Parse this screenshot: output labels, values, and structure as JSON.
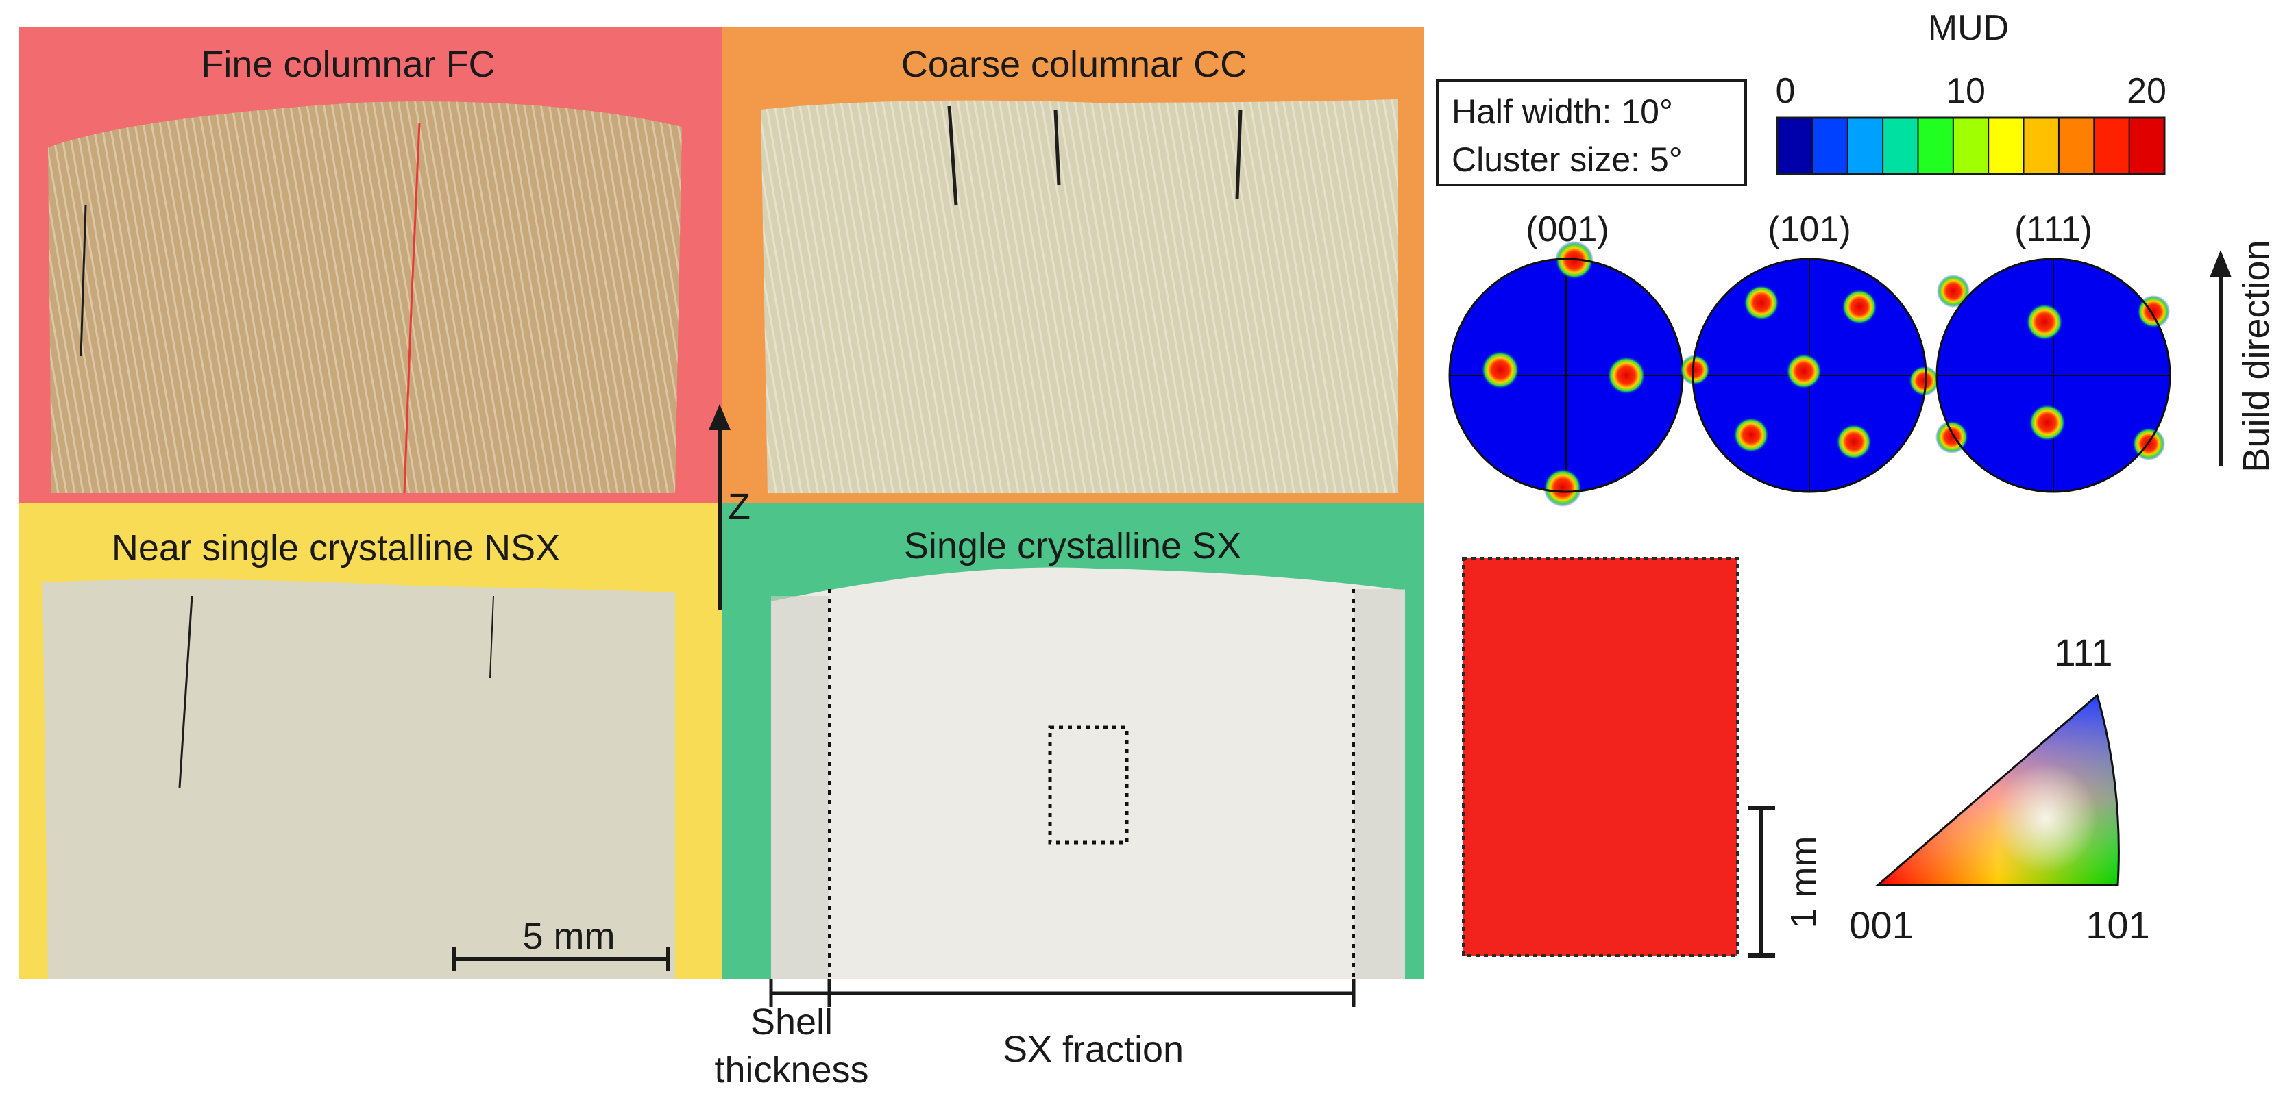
{
  "panels": {
    "fc": {
      "title": "Fine columnar FC",
      "bg": "#f26b6f",
      "sample": "#c7a87a"
    },
    "cc": {
      "title": "Coarse columnar CC",
      "bg": "#f39a4a",
      "sample": "#d8d2b4"
    },
    "nsx": {
      "title": "Near single crystalline NSX",
      "bg": "#f8dc55",
      "sample": "#d9d6c4"
    },
    "sx": {
      "title": "Single crystalline SX",
      "bg": "#4dc58a",
      "sample": "#ecebe6"
    }
  },
  "axis_label": "Z",
  "scale_bar": {
    "label": "5 mm"
  },
  "annotations": {
    "shell_line1": "Shell",
    "shell_line2": "thickness",
    "sx_fraction": "SX fraction"
  },
  "colorbar": {
    "title": "MUD",
    "ticks": [
      "0",
      "10",
      "20"
    ],
    "colors": [
      "#0000aa",
      "#0040ff",
      "#00a0ff",
      "#00e0a0",
      "#20ff20",
      "#a0ff00",
      "#ffff00",
      "#ffc000",
      "#ff8000",
      "#ff2000",
      "#e00000"
    ]
  },
  "info_box": {
    "line1": "Half width: 10°",
    "line2": "Cluster size: 5°"
  },
  "pole_figures": [
    {
      "label": "(001)"
    },
    {
      "label": "(101)"
    },
    {
      "label": "(111)"
    }
  ],
  "build_direction": "Build direction",
  "ebsd_map": {
    "color": "#f2221c",
    "scale_label": "1 mm"
  },
  "ipf_triangle": {
    "top": "111",
    "left": "001",
    "right": "101"
  }
}
